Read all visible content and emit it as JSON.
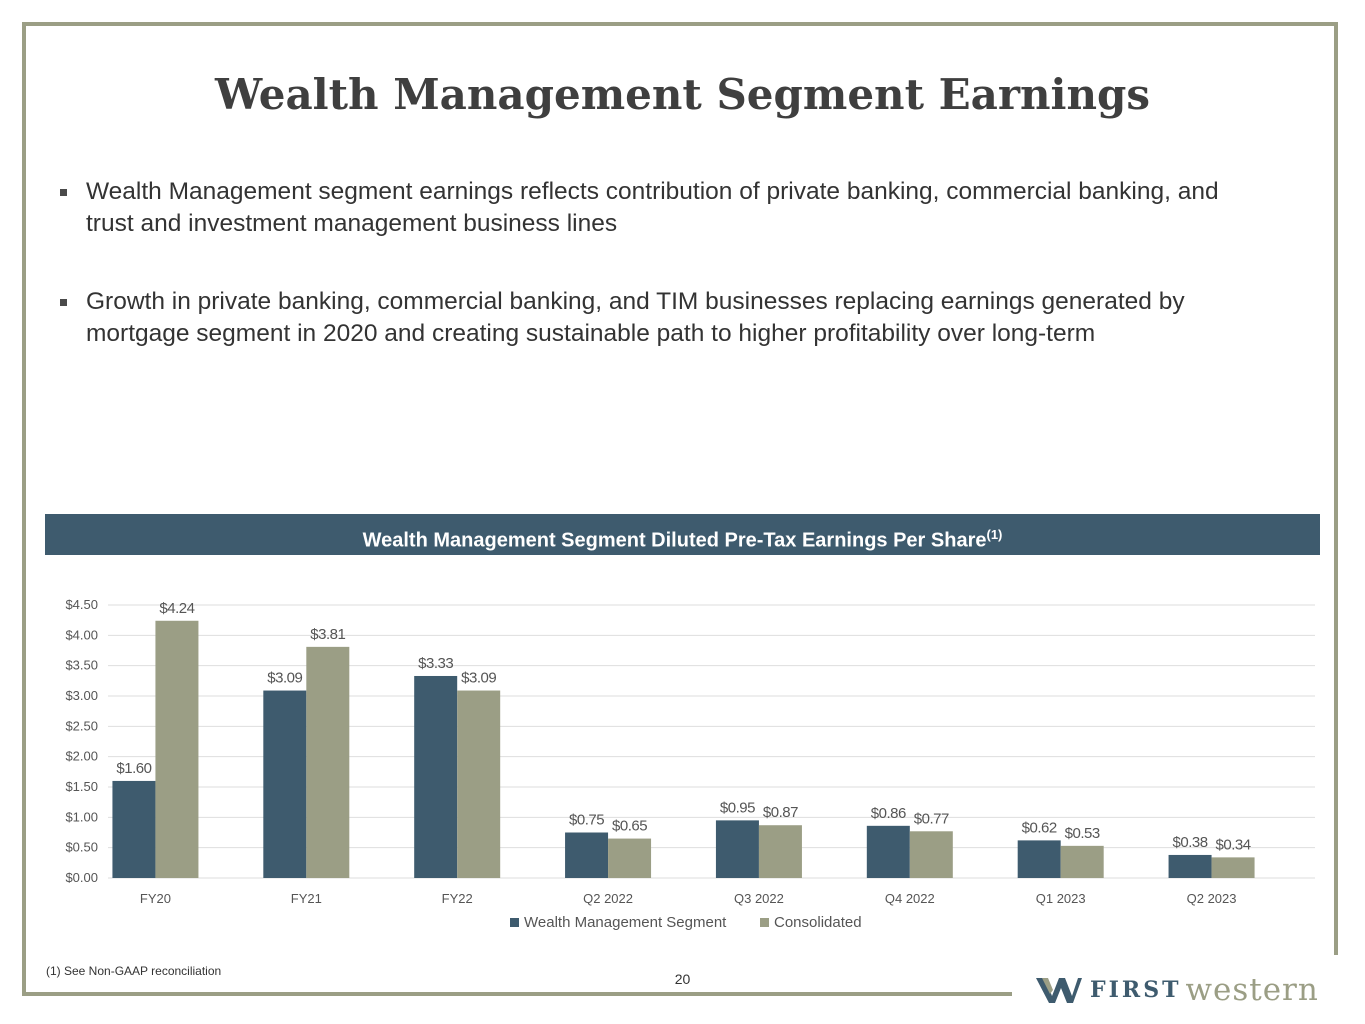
{
  "title": "Wealth Management Segment Earnings",
  "bullets": [
    "Wealth Management segment earnings reflects contribution of private banking, commercial banking, and trust and investment management business lines",
    "Growth in private banking, commercial banking, and TIM businesses replacing earnings generated by mortgage segment in 2020 and creating sustainable path to higher profitability over long-term"
  ],
  "chart_header": "Wealth Management Segment Diluted Pre-Tax Earnings Per Share",
  "chart_header_sup": "(1)",
  "chart_data": {
    "type": "bar",
    "title": "Wealth Management Segment Diluted Pre-Tax Earnings Per Share(1)",
    "categories": [
      "FY20",
      "FY21",
      "FY22",
      "Q2 2022",
      "Q3 2022",
      "Q4 2022",
      "Q1 2023",
      "Q2 2023"
    ],
    "series": [
      {
        "name": "Wealth Management Segment",
        "color": "#3e5b6e",
        "values": [
          1.6,
          3.09,
          3.33,
          0.75,
          0.95,
          0.86,
          0.62,
          0.38
        ],
        "labels": [
          "$1.60",
          "$3.09",
          "$3.33",
          "$0.75",
          "$0.95",
          "$0.86",
          "$0.62",
          "$0.38"
        ]
      },
      {
        "name": "Consolidated",
        "color": "#9b9e85",
        "values": [
          4.24,
          3.81,
          3.09,
          0.65,
          0.87,
          0.77,
          0.53,
          0.34
        ],
        "labels": [
          "$4.24",
          "$3.81",
          "$3.09",
          "$0.65",
          "$0.87",
          "$0.77",
          "$0.53",
          "$0.34"
        ]
      }
    ],
    "ylim": [
      0,
      4.5
    ],
    "yticks": [
      "$0.00",
      "$0.50",
      "$1.00",
      "$1.50",
      "$2.00",
      "$2.50",
      "$3.00",
      "$3.50",
      "$4.00",
      "$4.50"
    ],
    "grid": true,
    "legend": "bottom-center",
    "xlabel": "",
    "ylabel": ""
  },
  "footnote": "(1)  See Non-GAAP reconciliation",
  "page_number": "20",
  "logo": {
    "first": "FIRST",
    "western": "western"
  }
}
